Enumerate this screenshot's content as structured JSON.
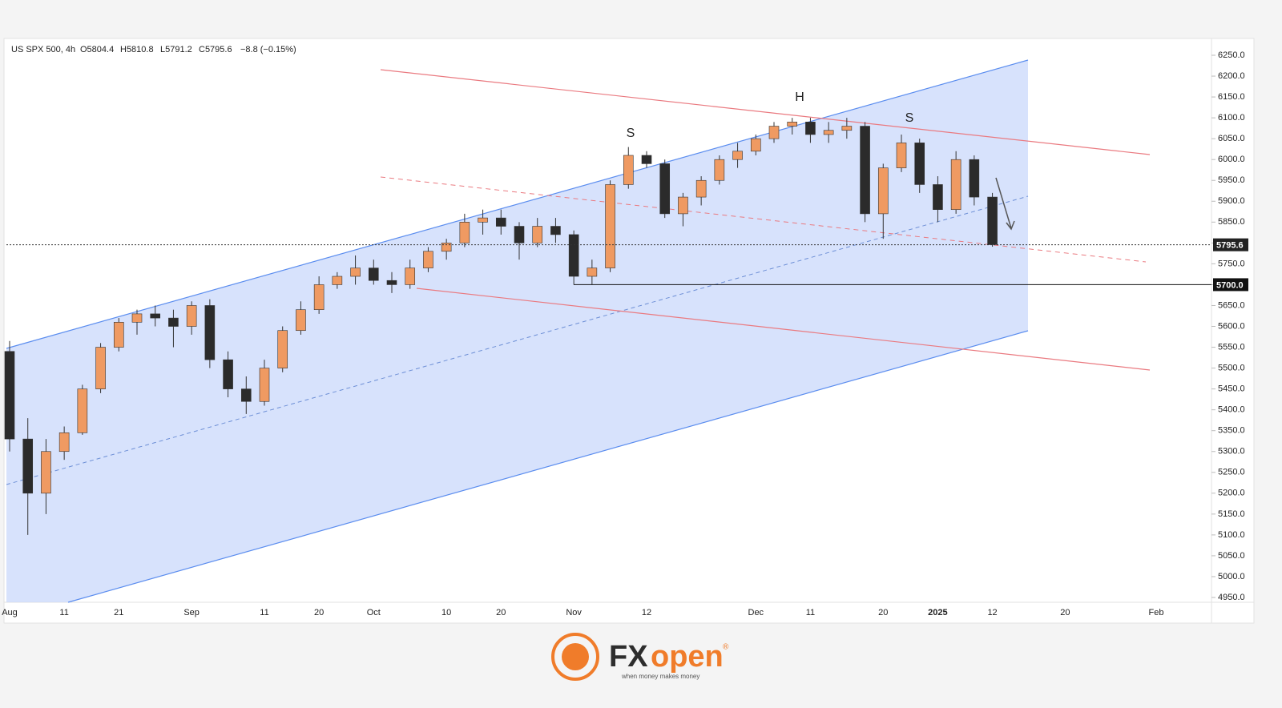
{
  "header": {
    "symbol": "US SPX 500, 4h",
    "ohlc": [
      "O5804.4",
      "H5810.8",
      "L5791.2",
      "C5795.6",
      "−8.8 (−0.15%)"
    ]
  },
  "chart_data": {
    "type": "candlestick",
    "categories": [
      "Aug",
      null,
      null,
      "11",
      null,
      null,
      "21",
      null,
      null,
      null,
      "Sep",
      null,
      null,
      null,
      "11",
      null,
      null,
      "20",
      null,
      null,
      "Oct",
      null,
      null,
      null,
      "10",
      null,
      null,
      "20",
      null,
      null,
      null,
      "Nov",
      null,
      null,
      null,
      "12",
      null,
      null,
      null,
      null,
      null,
      "Dec",
      null,
      null,
      "11",
      null,
      null,
      null,
      "20",
      null,
      null,
      "2025",
      null,
      null,
      "12",
      null,
      null,
      null,
      "20",
      null,
      null,
      null,
      null,
      "Feb"
    ],
    "open": [
      5540,
      5330,
      5200,
      5300,
      5345,
      5450,
      5550,
      5610,
      5630,
      5620,
      5600,
      5650,
      5520,
      5450,
      5420,
      5500,
      5590,
      5640,
      5700,
      5720,
      5740,
      5710,
      5700,
      5740,
      5780,
      5800,
      5850,
      5860,
      5840,
      5800,
      5840,
      5820,
      5720,
      5740,
      5940,
      6010,
      5990,
      5870,
      5910,
      5950,
      6000,
      6020,
      6050,
      6080,
      6090,
      6060,
      6070,
      6080,
      5870,
      5980,
      6040,
      5940,
      5880,
      6000,
      5910,
      null,
      null,
      null,
      null,
      null,
      null,
      null,
      null,
      null
    ],
    "high": [
      5565,
      5380,
      5330,
      5360,
      5460,
      5560,
      5620,
      5640,
      5650,
      5640,
      5660,
      5665,
      5540,
      5480,
      5520,
      5600,
      5660,
      5720,
      5730,
      5770,
      5760,
      5730,
      5760,
      5790,
      5810,
      5870,
      5880,
      5880,
      5850,
      5860,
      5860,
      5830,
      5760,
      5950,
      6030,
      6020,
      6000,
      5920,
      5960,
      6010,
      6040,
      6060,
      6090,
      6100,
      6100,
      6090,
      6100,
      6090,
      5990,
      6060,
      6050,
      5960,
      6020,
      6010,
      5920,
      null,
      null,
      null,
      null,
      null,
      null,
      null,
      null,
      null
    ],
    "low": [
      5300,
      5100,
      5150,
      5280,
      5340,
      5440,
      5540,
      5580,
      5600,
      5550,
      5580,
      5500,
      5430,
      5390,
      5410,
      5490,
      5580,
      5630,
      5690,
      5700,
      5700,
      5680,
      5690,
      5730,
      5760,
      5790,
      5820,
      5820,
      5760,
      5790,
      5800,
      5700,
      5700,
      5730,
      5930,
      5980,
      5860,
      5840,
      5890,
      5940,
      5980,
      6010,
      6040,
      6060,
      6040,
      6040,
      6050,
      5850,
      5810,
      5970,
      5920,
      5850,
      5870,
      5890,
      5791,
      null,
      null,
      null,
      null,
      null,
      null,
      null,
      null,
      null
    ],
    "close": [
      5330,
      5200,
      5300,
      5345,
      5450,
      5550,
      5610,
      5630,
      5620,
      5600,
      5650,
      5520,
      5450,
      5420,
      5500,
      5590,
      5640,
      5700,
      5720,
      5740,
      5710,
      5700,
      5740,
      5780,
      5800,
      5850,
      5860,
      5840,
      5800,
      5840,
      5820,
      5720,
      5740,
      5940,
      6010,
      5990,
      5870,
      5910,
      5950,
      6000,
      6020,
      6050,
      6080,
      6090,
      6060,
      6070,
      6080,
      5870,
      5980,
      6040,
      5940,
      5880,
      6000,
      5910,
      5796,
      null,
      null,
      null,
      null,
      null,
      null,
      null,
      null,
      null
    ],
    "up_color": "#ef9a62",
    "down_color": "#2b2b2b",
    "ylim": [
      4938.5,
      6286.5
    ],
    "yticks": [
      {
        "value": 4950,
        "label": "4950.0"
      },
      {
        "value": 5000,
        "label": "5000.0"
      },
      {
        "value": 5050,
        "label": "5050.0"
      },
      {
        "value": 5100,
        "label": "5100.0"
      },
      {
        "value": 5150,
        "label": "5150.0"
      },
      {
        "value": 5200,
        "label": "5200.0"
      },
      {
        "value": 5250,
        "label": "5250.0"
      },
      {
        "value": 5300,
        "label": "5300.0"
      },
      {
        "value": 5350,
        "label": "5350.0"
      },
      {
        "value": 5400,
        "label": "5400.0"
      },
      {
        "value": 5450,
        "label": "5450.0"
      },
      {
        "value": 5500,
        "label": "5500.0"
      },
      {
        "value": 5550,
        "label": "5550.0"
      },
      {
        "value": 5600,
        "label": "5600.0"
      },
      {
        "value": 5650,
        "label": "5650.0"
      },
      {
        "value": 5700,
        "label": "5700.0"
      },
      {
        "value": 5750,
        "label": "5750.0"
      },
      {
        "value": 5800,
        "label": "5800.0"
      },
      {
        "value": 5850,
        "label": "5850.0"
      },
      {
        "value": 5900,
        "label": "5900.0"
      },
      {
        "value": 5950,
        "label": "5950.0"
      },
      {
        "value": 6000,
        "label": "6000.0"
      },
      {
        "value": 6050,
        "label": "6050.0"
      },
      {
        "value": 6100,
        "label": "6100.0"
      },
      {
        "value": 6150,
        "label": "6150.0"
      },
      {
        "value": 6200,
        "label": "6200.0"
      },
      {
        "value": 6250,
        "label": "6250.0"
      }
    ],
    "price_lines": [
      {
        "value": 5795.6,
        "label": "5795.6"
      },
      {
        "value": 5700,
        "label": "5700.0"
      }
    ],
    "annotations": [
      "S",
      "H",
      "S"
    ]
  },
  "logo": {
    "brand_a": "FX",
    "brand_b": "open",
    "mark": "®",
    "tagline": "when money makes money"
  }
}
